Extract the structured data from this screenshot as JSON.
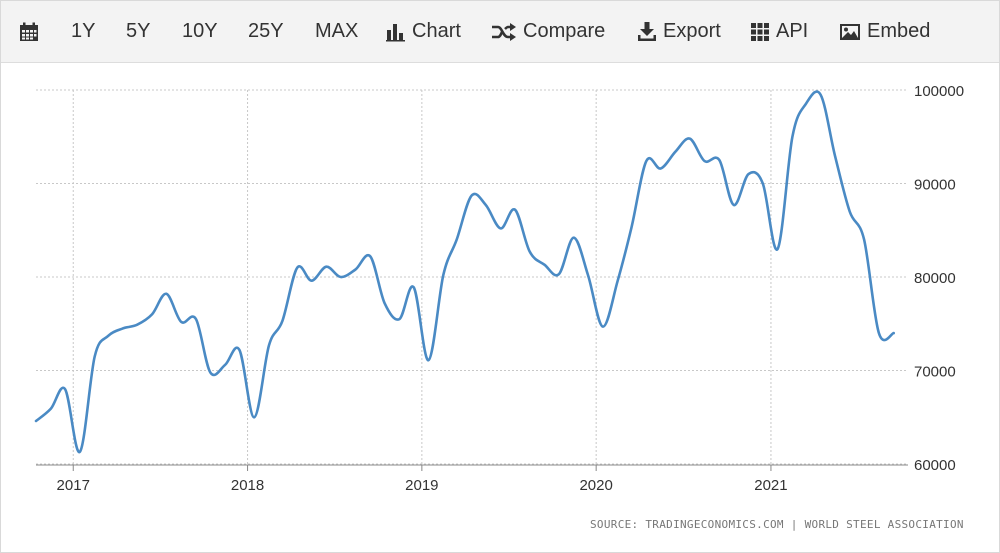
{
  "toolbar": {
    "items": [
      {
        "label": "",
        "icon": "calendar-icon"
      },
      {
        "label": "1Y",
        "icon": ""
      },
      {
        "label": "5Y",
        "icon": ""
      },
      {
        "label": "10Y",
        "icon": ""
      },
      {
        "label": "25Y",
        "icon": ""
      },
      {
        "label": "MAX",
        "icon": ""
      },
      {
        "label": "Chart",
        "icon": "bar-chart-icon"
      },
      {
        "label": "Compare",
        "icon": "shuffle-icon"
      },
      {
        "label": "Export",
        "icon": "download-icon"
      },
      {
        "label": "API",
        "icon": "grid-icon"
      },
      {
        "label": "Embed",
        "icon": "image-icon"
      }
    ]
  },
  "source": "SOURCE: TRADINGECONOMICS.COM | WORLD STEEL ASSOCIATION",
  "colors": {
    "line": "#4a8ac4",
    "grid": "#c8c8c8",
    "toolbar_bg": "#f3f3f3",
    "text": "#333333"
  },
  "chart_data": {
    "type": "line",
    "title": "",
    "xlabel": "",
    "ylabel": "",
    "ylim": [
      60000,
      100000
    ],
    "yticks": [
      60000,
      70000,
      80000,
      90000,
      100000
    ],
    "ytick_labels": [
      "60000",
      "70000",
      "80000",
      "90000",
      "100000"
    ],
    "xticks": [
      "2017",
      "2018",
      "2019",
      "2020",
      "2021"
    ],
    "xlim": [
      "2016-10-15",
      "2021-10-15"
    ],
    "grid": true,
    "y_axis_side": "right",
    "series": [
      {
        "name": "",
        "x": [
          "2016-10",
          "2016-11",
          "2016-12",
          "2017-01",
          "2017-02",
          "2017-03",
          "2017-04",
          "2017-05",
          "2017-06",
          "2017-07",
          "2017-08",
          "2017-09",
          "2017-10",
          "2017-11",
          "2017-12",
          "2018-01",
          "2018-02",
          "2018-03",
          "2018-04",
          "2018-05",
          "2018-06",
          "2018-07",
          "2018-08",
          "2018-09",
          "2018-10",
          "2018-11",
          "2018-12",
          "2019-01",
          "2019-02",
          "2019-03",
          "2019-04",
          "2019-05",
          "2019-06",
          "2019-07",
          "2019-08",
          "2019-09",
          "2019-10",
          "2019-11",
          "2019-12",
          "2020-01",
          "2020-02",
          "2020-03",
          "2020-04",
          "2020-05",
          "2020-06",
          "2020-07",
          "2020-08",
          "2020-09",
          "2020-10",
          "2020-11",
          "2020-12",
          "2021-01",
          "2021-02",
          "2021-03",
          "2021-04",
          "2021-05",
          "2021-06",
          "2021-07",
          "2021-08",
          "2021-09"
        ],
        "values": [
          64600,
          65900,
          68000,
          61300,
          71500,
          73700,
          74500,
          74900,
          76000,
          78200,
          75200,
          75500,
          69800,
          70600,
          72200,
          65000,
          72700,
          75300,
          81000,
          79600,
          81100,
          80000,
          80800,
          82200,
          77200,
          75500,
          78900,
          71100,
          80200,
          84000,
          88700,
          87700,
          85200,
          87200,
          82700,
          81300,
          80300,
          84200,
          80200,
          74700,
          79600,
          85300,
          92400,
          91600,
          93400,
          94800,
          92400,
          92500,
          87700,
          91000,
          90000,
          83000,
          95000,
          98500,
          99500,
          93000,
          87000,
          84000,
          74000,
          74000
        ]
      }
    ]
  }
}
